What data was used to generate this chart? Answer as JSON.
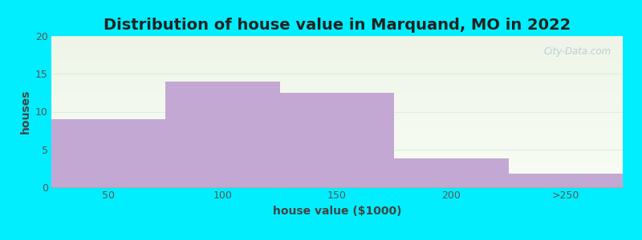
{
  "title": "Distribution of house value in Marquand, MO in 2022",
  "xlabel": "house value ($1000)",
  "ylabel": "houses",
  "categories": [
    "50",
    "100",
    "150",
    "200",
    ">250"
  ],
  "values": [
    9,
    14,
    12.5,
    3.8,
    1.8
  ],
  "bar_color": "#c4a8d4",
  "background_color": "#00eeff",
  "plot_bg_color_top": "#eef5e8",
  "plot_bg_color_bottom": "#f8fdf5",
  "ylim": [
    0,
    20
  ],
  "yticks": [
    0,
    5,
    10,
    15,
    20
  ],
  "grid_color": "#ddeedd",
  "title_fontsize": 14,
  "axis_label_fontsize": 10,
  "tick_fontsize": 9,
  "watermark_text": "City-Data.com"
}
